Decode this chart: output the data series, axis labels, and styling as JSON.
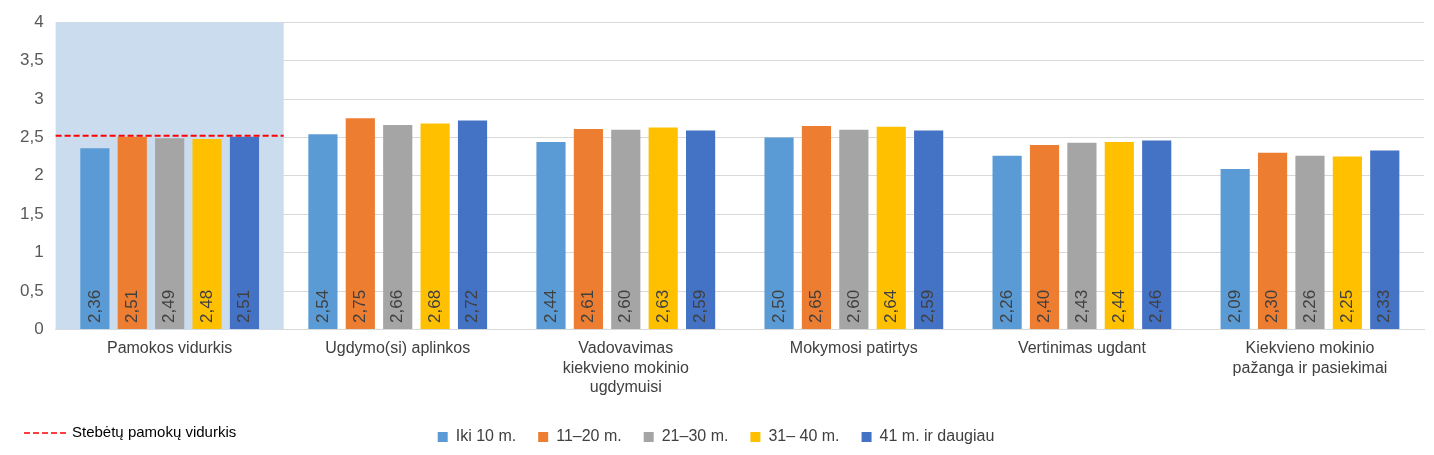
{
  "chart_data": {
    "type": "bar",
    "categories": [
      "Pamokos vidurkis",
      "Ugdymo(si) aplinkos",
      "Vadovavimas kiekvieno mokinio ugdymuisi",
      "Mokymosi patirtys",
      "Vertinimas ugdant",
      "Kiekvieno mokinio pažanga ir pasiekimai"
    ],
    "series": [
      {
        "name": "Iki 10 m.",
        "color": "#5b9bd5",
        "values": [
          2.36,
          2.54,
          2.44,
          2.5,
          2.26,
          2.09
        ],
        "value_labels": [
          "2,36",
          "2,54",
          "2,44",
          "2,50",
          "2,26",
          "2,09"
        ]
      },
      {
        "name": "11–20 m.",
        "color": "#ed7d31",
        "values": [
          2.51,
          2.75,
          2.61,
          2.65,
          2.4,
          2.3
        ],
        "value_labels": [
          "2,51",
          "2,75",
          "2,61",
          "2,65",
          "2,40",
          "2,30"
        ]
      },
      {
        "name": "21–30 m.",
        "color": "#a5a5a5",
        "values": [
          2.49,
          2.66,
          2.6,
          2.6,
          2.43,
          2.26
        ],
        "value_labels": [
          "2,49",
          "2,66",
          "2,60",
          "2,60",
          "2,43",
          "2,26"
        ]
      },
      {
        "name": "31– 40 m.",
        "color": "#ffc000",
        "values": [
          2.48,
          2.68,
          2.63,
          2.64,
          2.44,
          2.25
        ],
        "value_labels": [
          "2,48",
          "2,68",
          "2,63",
          "2,64",
          "2,44",
          "2,25"
        ]
      },
      {
        "name": "41 m. ir daugiau",
        "color": "#4472c4",
        "values": [
          2.51,
          2.72,
          2.59,
          2.59,
          2.46,
          2.33
        ],
        "value_labels": [
          "2,51",
          "2,72",
          "2,59",
          "2,59",
          "2,46",
          "2,33"
        ]
      }
    ],
    "ylim": [
      0,
      4
    ],
    "yticks": [
      0,
      {
        "value": 0.5,
        "label": "0,5"
      },
      1,
      {
        "value": 1.5,
        "label": "1,5"
      },
      2,
      {
        "value": 2.5,
        "label": "2,5"
      },
      3,
      {
        "value": 3.5,
        "label": "3,5"
      },
      4
    ],
    "ref_lines": [
      {
        "axis": "y",
        "value": 2.52,
        "label": "Stebėtų pamokų vidurkis",
        "color": "#ff0000",
        "line_style": "dashed"
      }
    ],
    "bands": [
      {
        "axis": "x",
        "from": "Pamokos vidurkis",
        "to": "Pamokos vidurkis",
        "color": "#cbdcee"
      }
    ],
    "grid": "y",
    "legend": "bottom"
  }
}
